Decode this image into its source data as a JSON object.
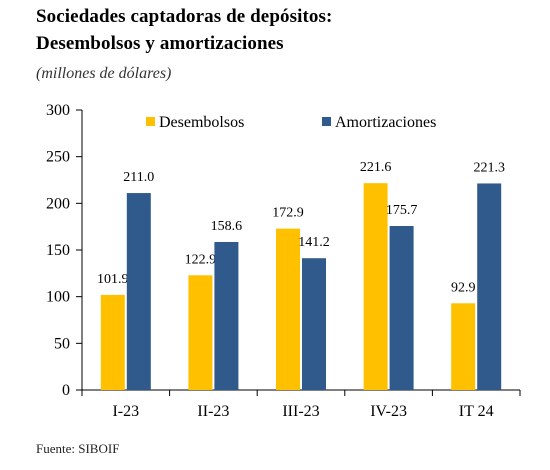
{
  "title_line1": "Sociedades captadoras de depósitos:",
  "title_line2": "Desembolsos y amortizaciones",
  "subtitle": "(millones de dólares)",
  "source": "Fuente:  SIBOIF",
  "colors": {
    "desembolsos": "#FFC000",
    "amortizaciones": "#305A8C"
  },
  "chart_data": {
    "type": "bar",
    "categories": [
      "I-23",
      "II-23",
      "III-23",
      "IV-23",
      "IT 24"
    ],
    "series": [
      {
        "name": "Desembolsos",
        "values": [
          101.9,
          122.9,
          172.9,
          221.6,
          92.9
        ]
      },
      {
        "name": "Amortizaciones",
        "values": [
          211.0,
          158.6,
          141.2,
          175.7,
          221.3
        ]
      }
    ],
    "data_labels": [
      [
        "101.9",
        "122.9",
        "172.9",
        "221.6",
        "92.9"
      ],
      [
        "211.0",
        "158.6",
        "141.2",
        "175.7",
        "221.3"
      ]
    ],
    "yticks": [
      "0",
      "50",
      "100",
      "150",
      "200",
      "250",
      "300"
    ],
    "ylim": [
      0,
      300
    ],
    "grid": false,
    "legend": "top"
  }
}
